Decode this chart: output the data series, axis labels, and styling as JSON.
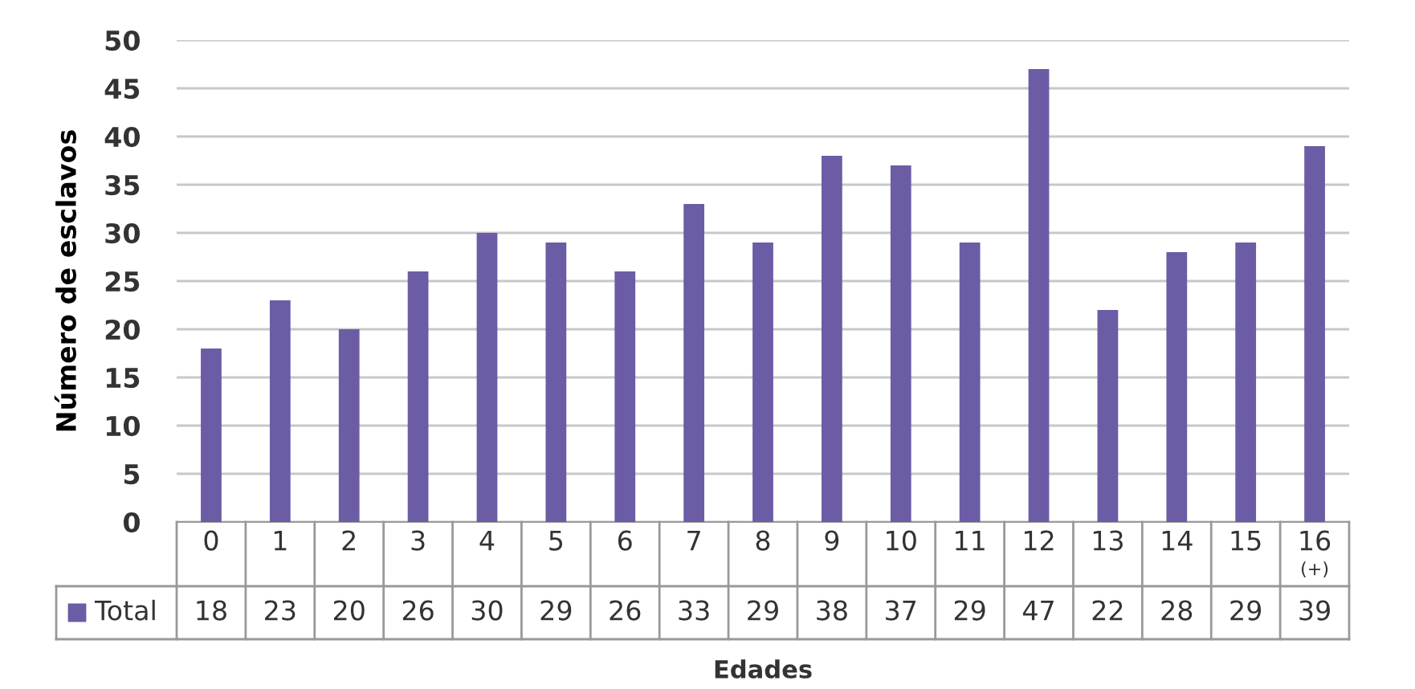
{
  "chart_data": {
    "type": "bar",
    "xlabel": "Edades",
    "ylabel": "Número de esclavos",
    "categories": [
      "0",
      "1",
      "2",
      "3",
      "4",
      "5",
      "6",
      "7",
      "8",
      "9",
      "10",
      "11",
      "12",
      "13",
      "14",
      "15",
      "16\n(+)"
    ],
    "series": [
      {
        "name": "Total",
        "color": "#6b5ca5",
        "values": [
          18,
          23,
          20,
          26,
          30,
          29,
          26,
          33,
          29,
          38,
          37,
          29,
          47,
          22,
          28,
          29,
          39
        ]
      }
    ],
    "ylim": [
      0,
      50
    ],
    "yticks": [
      0,
      5,
      10,
      15,
      20,
      25,
      30,
      35,
      40,
      45,
      50
    ],
    "grid": "y",
    "legend": "bottom left",
    "data_labels": true
  }
}
